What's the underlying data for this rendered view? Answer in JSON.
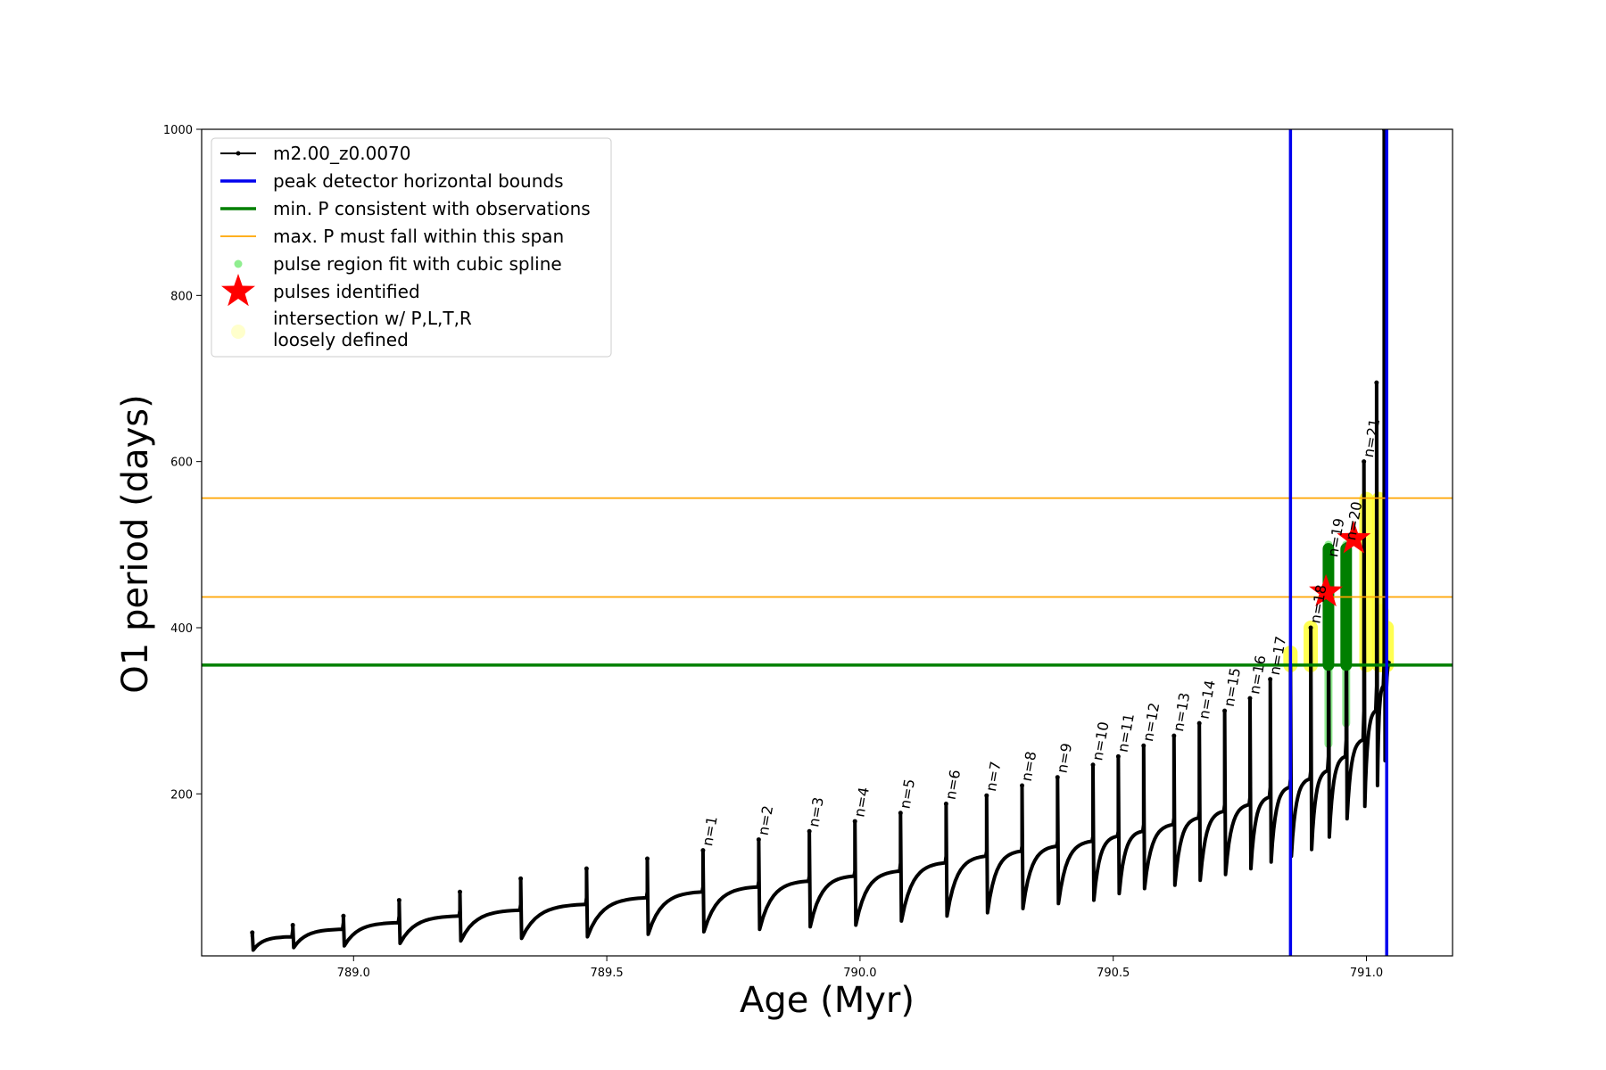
{
  "chart_data": {
    "type": "line",
    "xlabel": "Age (Myr)",
    "ylabel": "O1 period (days)",
    "xlim": [
      788.7,
      791.17
    ],
    "ylim": [
      5,
      1000
    ],
    "xticks": [
      {
        "value": 789.0,
        "label": "789.0"
      },
      {
        "value": 789.5,
        "label": "789.5"
      },
      {
        "value": 790.0,
        "label": "790.0"
      },
      {
        "value": 790.5,
        "label": "790.5"
      },
      {
        "value": 791.0,
        "label": "791.0"
      }
    ],
    "yticks": [
      {
        "value": 200,
        "label": "200"
      },
      {
        "value": 400,
        "label": "400"
      },
      {
        "value": 600,
        "label": "600"
      },
      {
        "value": 800,
        "label": "800"
      },
      {
        "value": 1000,
        "label": "1000"
      }
    ],
    "grid": false,
    "legend_position": "upper-left",
    "legend": [
      {
        "label": "m2.00_z0.0070",
        "kind": "line-dot",
        "color": "#000000"
      },
      {
        "label": "peak detector horizontal bounds",
        "kind": "line",
        "color": "#0000ee"
      },
      {
        "label": "min. P consistent with observations",
        "kind": "line",
        "color": "#007f00"
      },
      {
        "label": "max. P must fall within this span",
        "kind": "thin-line",
        "color": "#ffa500"
      },
      {
        "label": "pulse region fit with cubic spline",
        "kind": "dot",
        "color": "#90ee90"
      },
      {
        "label": "pulses identified",
        "kind": "star",
        "color": "#ff0000"
      },
      {
        "label": "intersection w/ P,L,T,R",
        "label2": "loosely defined",
        "kind": "big-dot",
        "color": "#ffffcc"
      }
    ],
    "series": [
      {
        "name": "m2.00_z0.0070",
        "color": "#000000",
        "pulses": [
          {
            "age": 788.8,
            "base": 12,
            "plateau": 28,
            "peak": 33
          },
          {
            "age": 788.88,
            "base": 15,
            "plateau": 37,
            "peak": 42
          },
          {
            "age": 788.98,
            "base": 17,
            "plateau": 45,
            "peak": 53
          },
          {
            "age": 789.09,
            "base": 20,
            "plateau": 53,
            "peak": 72
          },
          {
            "age": 789.21,
            "base": 23,
            "plateau": 60,
            "peak": 82
          },
          {
            "age": 789.33,
            "base": 26,
            "plateau": 67,
            "peak": 98
          },
          {
            "age": 789.46,
            "base": 28,
            "plateau": 75,
            "peak": 110
          },
          {
            "age": 789.58,
            "base": 31,
            "plateau": 82,
            "peak": 122
          },
          {
            "age": 789.69,
            "base": 34,
            "plateau": 88,
            "peak": 132,
            "label": "n=1"
          },
          {
            "age": 789.8,
            "base": 37,
            "plateau": 95,
            "peak": 145,
            "label": "n=2"
          },
          {
            "age": 789.9,
            "base": 40,
            "plateau": 101,
            "peak": 155,
            "label": "n=3"
          },
          {
            "age": 789.99,
            "base": 42,
            "plateau": 107,
            "peak": 167,
            "label": "n=4"
          },
          {
            "age": 790.08,
            "base": 47,
            "plateau": 117,
            "peak": 177,
            "label": "n=5"
          },
          {
            "age": 790.17,
            "base": 53,
            "plateau": 125,
            "peak": 188,
            "label": "n=6"
          },
          {
            "age": 790.25,
            "base": 57,
            "plateau": 131,
            "peak": 198,
            "label": "n=7"
          },
          {
            "age": 790.32,
            "base": 62,
            "plateau": 137,
            "peak": 210,
            "label": "n=8"
          },
          {
            "age": 790.39,
            "base": 68,
            "plateau": 143,
            "peak": 220,
            "label": "n=9"
          },
          {
            "age": 790.46,
            "base": 72,
            "plateau": 149,
            "peak": 235,
            "label": "n=10"
          },
          {
            "age": 790.51,
            "base": 80,
            "plateau": 155,
            "peak": 245,
            "label": "n=11"
          },
          {
            "age": 790.56,
            "base": 86,
            "plateau": 163,
            "peak": 258,
            "label": "n=12"
          },
          {
            "age": 790.62,
            "base": 90,
            "plateau": 171,
            "peak": 270,
            "label": "n=13"
          },
          {
            "age": 790.67,
            "base": 96,
            "plateau": 179,
            "peak": 285,
            "label": "n=14"
          },
          {
            "age": 790.72,
            "base": 103,
            "plateau": 187,
            "peak": 300,
            "label": "n=15"
          },
          {
            "age": 790.77,
            "base": 110,
            "plateau": 196,
            "peak": 315,
            "label": "n=16"
          },
          {
            "age": 790.81,
            "base": 118,
            "plateau": 208,
            "peak": 338,
            "label": "n=17"
          },
          {
            "age": 790.85,
            "base": 125,
            "plateau": 218,
            "peak": 355
          },
          {
            "age": 790.89,
            "base": 133,
            "plateau": 228,
            "peak": 400,
            "label": "n=18"
          },
          {
            "age": 790.925,
            "base": 148,
            "plateau": 245,
            "peak": 480,
            "label": "n=19"
          },
          {
            "age": 790.96,
            "base": 170,
            "plateau": 265,
            "peak": 500,
            "label": "n=20"
          },
          {
            "age": 790.995,
            "base": 185,
            "plateau": 300,
            "peak": 600,
            "label": "n=21"
          },
          {
            "age": 791.02,
            "base": 210,
            "plateau": 330,
            "peak": 695
          },
          {
            "age": 791.035,
            "base": 240,
            "plateau": 360,
            "peak": 1000
          }
        ]
      }
    ],
    "reference_lines": {
      "vertical_blue": [
        790.85,
        791.04
      ],
      "horizontal_green": 355,
      "horizontal_orange": [
        437,
        556
      ]
    },
    "spline_regions": [
      {
        "age": 790.925,
        "from": 260,
        "to": 500
      },
      {
        "age": 790.96,
        "from": 285,
        "to": 500
      }
    ],
    "min_p_segments": [
      {
        "age": 790.925,
        "from": 355,
        "to": 495
      },
      {
        "age": 790.96,
        "from": 355,
        "to": 495
      }
    ],
    "pulses_identified": [
      {
        "age": 790.92,
        "period": 443
      },
      {
        "age": 790.975,
        "period": 507
      }
    ],
    "intersections": [
      {
        "age": 790.85,
        "from": 355,
        "to": 370
      },
      {
        "age": 790.89,
        "from": 355,
        "to": 400
      },
      {
        "age": 791.0,
        "from": 355,
        "to": 555
      },
      {
        "age": 791.025,
        "from": 355,
        "to": 555
      },
      {
        "age": 791.03,
        "from": 355,
        "to": 420
      },
      {
        "age": 791.04,
        "from": 355,
        "to": 400
      }
    ]
  }
}
